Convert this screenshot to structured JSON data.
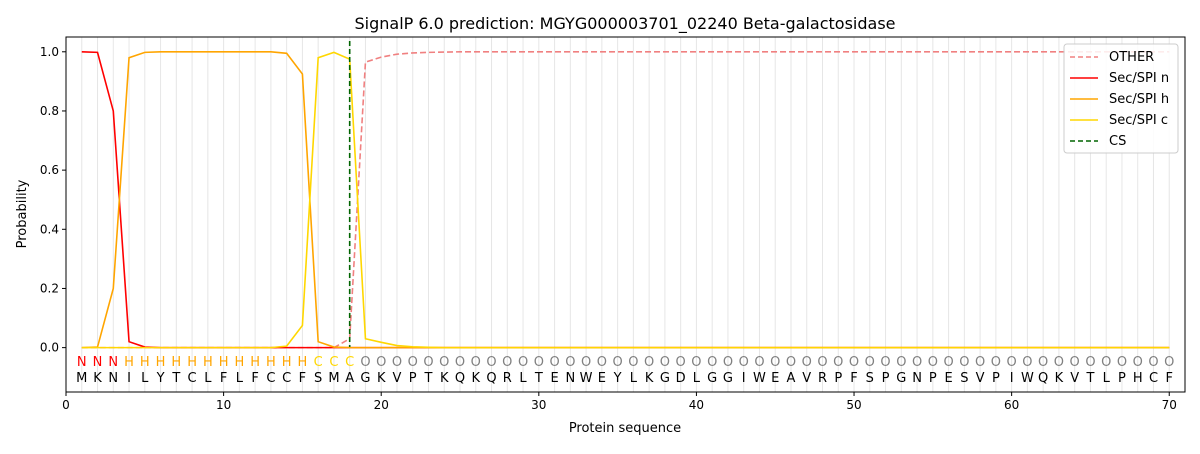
{
  "chart_data": {
    "type": "line",
    "title": "SignalP 6.0 prediction: MGYG000003701_02240 Beta-galactosidase",
    "xlabel": "Protein sequence",
    "ylabel": "Probability",
    "xlim": [
      0,
      71
    ],
    "ylim": [
      -0.15,
      1.05
    ],
    "xticks": [
      0,
      10,
      20,
      30,
      40,
      50,
      60,
      70
    ],
    "yticks": [
      0.0,
      0.2,
      0.4,
      0.6,
      0.8,
      1.0
    ],
    "legend_placement": "top-right",
    "sequence": [
      "M",
      "K",
      "N",
      "I",
      "L",
      "Y",
      "T",
      "C",
      "L",
      "F",
      "L",
      "F",
      "C",
      "C",
      "F",
      "S",
      "M",
      "A",
      "G",
      "K",
      "V",
      "P",
      "T",
      "K",
      "Q",
      "K",
      "Q",
      "R",
      "L",
      "T",
      "E",
      "N",
      "W",
      "E",
      "Y",
      "L",
      "K",
      "G",
      "D",
      "L",
      "G",
      "G",
      "I",
      "W",
      "E",
      "A",
      "V",
      "R",
      "P",
      "F",
      "S",
      "P",
      "G",
      "N",
      "P",
      "E",
      "S",
      "V",
      "P",
      "I",
      "W",
      "Q",
      "K",
      "V",
      "T",
      "L",
      "P",
      "H",
      "C",
      "F"
    ],
    "labels": [
      "N",
      "N",
      "N",
      "H",
      "H",
      "H",
      "H",
      "H",
      "H",
      "H",
      "H",
      "H",
      "H",
      "H",
      "H",
      "C",
      "C",
      "C",
      "O",
      "O",
      "O",
      "O",
      "O",
      "O",
      "O",
      "O",
      "O",
      "O",
      "O",
      "O",
      "O",
      "O",
      "O",
      "O",
      "O",
      "O",
      "O",
      "O",
      "O",
      "O",
      "O",
      "O",
      "O",
      "O",
      "O",
      "O",
      "O",
      "O",
      "O",
      "O",
      "O",
      "O",
      "O",
      "O",
      "O",
      "O",
      "O",
      "O",
      "O",
      "O",
      "O",
      "O",
      "O",
      "O",
      "O",
      "O",
      "O",
      "O",
      "O",
      "O"
    ],
    "label_colors": {
      "N": "#ff0000",
      "H": "#ffa500",
      "C": "#ffd700",
      "O": "#808080"
    },
    "series": [
      {
        "name": "OTHER",
        "color": "#f08080",
        "dash": true,
        "values": [
          0,
          0,
          0,
          0,
          0,
          0,
          0,
          0,
          0,
          0,
          0,
          0,
          0,
          0,
          0,
          0,
          0.0,
          0.03,
          0.965,
          0.982,
          0.992,
          0.996,
          0.998,
          0.999,
          1,
          1,
          1,
          1,
          1,
          1,
          1,
          1,
          1,
          1,
          1,
          1,
          1,
          1,
          1,
          1,
          1,
          1,
          1,
          1,
          1,
          1,
          1,
          1,
          1,
          1,
          1,
          1,
          1,
          1,
          1,
          1,
          1,
          1,
          1,
          1,
          1,
          1,
          1,
          1,
          1,
          1,
          1,
          1,
          1,
          1
        ]
      },
      {
        "name": "Sec/SPI n",
        "color": "#ff0000",
        "values": [
          1.0,
          0.998,
          0.8,
          0.02,
          0.002,
          0,
          0,
          0,
          0,
          0,
          0,
          0,
          0,
          0,
          0,
          0,
          0,
          0,
          0,
          0,
          0,
          0,
          0,
          0,
          0,
          0,
          0,
          0,
          0,
          0,
          0,
          0,
          0,
          0,
          0,
          0,
          0,
          0,
          0,
          0,
          0,
          0,
          0,
          0,
          0,
          0,
          0,
          0,
          0,
          0,
          0,
          0,
          0,
          0,
          0,
          0,
          0,
          0,
          0,
          0,
          0,
          0,
          0,
          0,
          0,
          0,
          0,
          0,
          0,
          0
        ]
      },
      {
        "name": "Sec/SPI h",
        "color": "#ffa500",
        "values": [
          0,
          0.002,
          0.2,
          0.98,
          0.998,
          1,
          1,
          1,
          1,
          1,
          1,
          1,
          1,
          0.995,
          0.925,
          0.02,
          0.002,
          0,
          0,
          0,
          0,
          0,
          0,
          0,
          0,
          0,
          0,
          0,
          0,
          0,
          0,
          0,
          0,
          0,
          0,
          0,
          0,
          0,
          0,
          0,
          0,
          0,
          0,
          0,
          0,
          0,
          0,
          0,
          0,
          0,
          0,
          0,
          0,
          0,
          0,
          0,
          0,
          0,
          0,
          0,
          0,
          0,
          0,
          0,
          0,
          0,
          0,
          0,
          0,
          0
        ]
      },
      {
        "name": "Sec/SPI c",
        "color": "#ffd700",
        "values": [
          0,
          0,
          0,
          0,
          0,
          0,
          0,
          0,
          0,
          0,
          0,
          0,
          0,
          0.005,
          0.075,
          0.98,
          0.998,
          0.975,
          0.03,
          0.018,
          0.007,
          0.003,
          0.001,
          0,
          0,
          0,
          0,
          0,
          0,
          0,
          0,
          0,
          0,
          0,
          0,
          0,
          0,
          0,
          0,
          0,
          0,
          0,
          0,
          0,
          0,
          0,
          0,
          0,
          0,
          0,
          0,
          0,
          0,
          0,
          0,
          0,
          0,
          0,
          0,
          0,
          0,
          0,
          0,
          0,
          0,
          0,
          0,
          0,
          0,
          0
        ]
      }
    ],
    "cs": {
      "name": "CS",
      "position": 18,
      "color": "#006400"
    }
  }
}
